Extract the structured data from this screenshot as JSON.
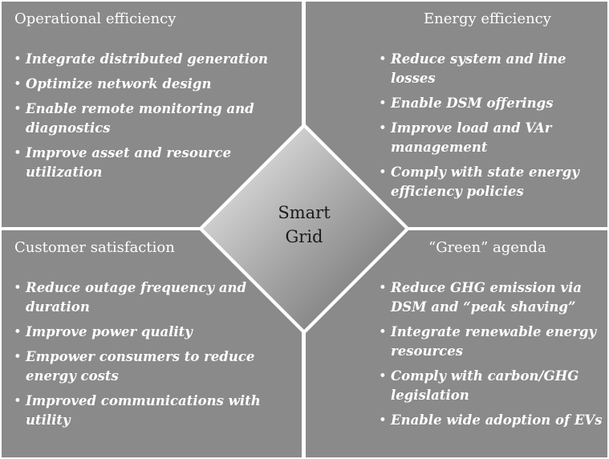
{
  "center": {
    "line1": "Smart",
    "line2": "Grid"
  },
  "quadrants": [
    {
      "title": "Operational efficiency",
      "items": [
        "Integrate distributed generation",
        "Optimize network design",
        "Enable remote monitoring and diagnostics",
        "Improve asset and resource utilization"
      ]
    },
    {
      "title": "Energy efficiency",
      "items": [
        "Reduce system and line losses",
        "Enable DSM offerings",
        "Improve load and VAr management",
        "Comply with state energy efficiency policies"
      ]
    },
    {
      "title": "Customer satisfaction",
      "items": [
        "Reduce outage frequency and duration",
        "Improve power quality",
        "Empower consumers to reduce energy costs",
        "Improved communications with utility"
      ]
    },
    {
      "title": "“Green” agenda",
      "items": [
        "Reduce GHG emission via DSM and “peak shaving”",
        "Integrate renewable energy resources",
        "Comply with carbon/GHG legislation",
        "Enable wide adoption of EVs"
      ]
    }
  ],
  "colors": {
    "quadrant_fill": "#8a8a8a",
    "divider": "#ffffff",
    "text": "#ffffff",
    "center_text": "#1a1a1a"
  }
}
